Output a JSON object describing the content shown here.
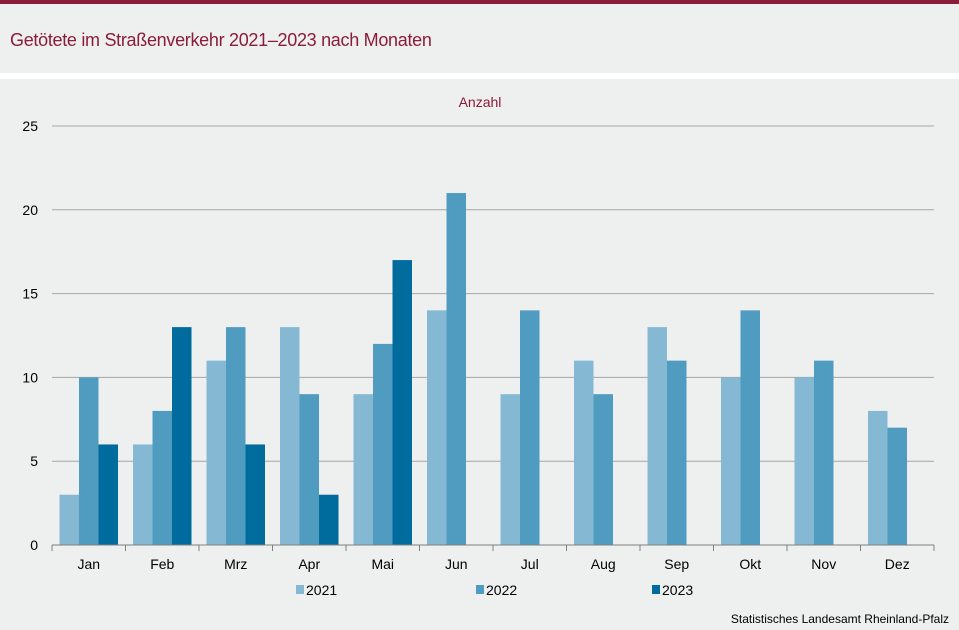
{
  "title": "Getötete im Straßenverkehr 2021–2023 nach Monaten",
  "source": "Statistisches Landesamt  Rheinland-Pfalz",
  "chart_data": {
    "type": "bar",
    "ylabel": "Anzahl",
    "ylim": [
      0,
      25
    ],
    "yticks": [
      0,
      5,
      10,
      15,
      20,
      25
    ],
    "grid": true,
    "legend_position": "bottom",
    "categories": [
      "Jan",
      "Feb",
      "Mrz",
      "Apr",
      "Mai",
      "Jun",
      "Jul",
      "Aug",
      "Sep",
      "Okt",
      "Nov",
      "Dez"
    ],
    "series": [
      {
        "name": "2021",
        "color": "#85b9d3",
        "values": [
          3,
          6,
          11,
          13,
          9,
          14,
          9,
          11,
          13,
          10,
          10,
          8
        ]
      },
      {
        "name": "2022",
        "color": "#4f9cc0",
        "values": [
          10,
          8,
          13,
          9,
          12,
          21,
          14,
          9,
          11,
          14,
          11,
          7
        ]
      },
      {
        "name": "2023",
        "color": "#006c9d",
        "values": [
          6,
          13,
          6,
          3,
          17,
          null,
          null,
          null,
          null,
          null,
          null,
          null
        ]
      }
    ]
  }
}
